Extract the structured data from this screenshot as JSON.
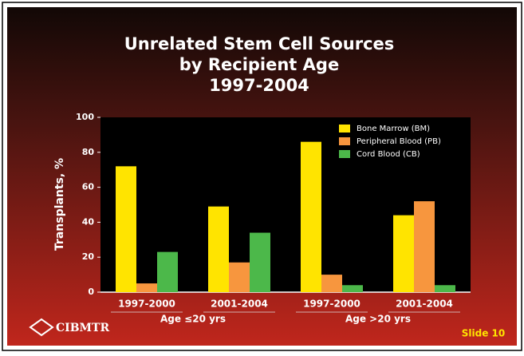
{
  "chart_data": {
    "type": "bar",
    "title": [
      "Unrelated Stem Cell Sources",
      "by Recipient Age",
      "1997-2004"
    ],
    "y_label": "Transplants, %",
    "categories": [
      "1997-2000",
      "2001-2004",
      "1997-2000",
      "2001-2004"
    ],
    "groups": [
      "Age ≤20 yrs",
      "Age >20 yrs"
    ],
    "series": [
      {
        "name": "Bone Marrow (BM)",
        "color": "#ffe400",
        "values": [
          72,
          49,
          86,
          44
        ]
      },
      {
        "name": "Peripheral Blood (PB)",
        "color": "#f7963e",
        "values": [
          5,
          17,
          10,
          52
        ]
      },
      {
        "name": "Cord Blood (CB)",
        "color": "#4cb84a",
        "values": [
          23,
          34,
          4,
          4
        ]
      }
    ],
    "ylim": [
      0,
      100
    ],
    "yticks": [
      0,
      20,
      40,
      60,
      80,
      100
    ],
    "legend": "top-right"
  },
  "footer": {
    "logo": "CIBMTR",
    "slide": "Slide 10"
  }
}
